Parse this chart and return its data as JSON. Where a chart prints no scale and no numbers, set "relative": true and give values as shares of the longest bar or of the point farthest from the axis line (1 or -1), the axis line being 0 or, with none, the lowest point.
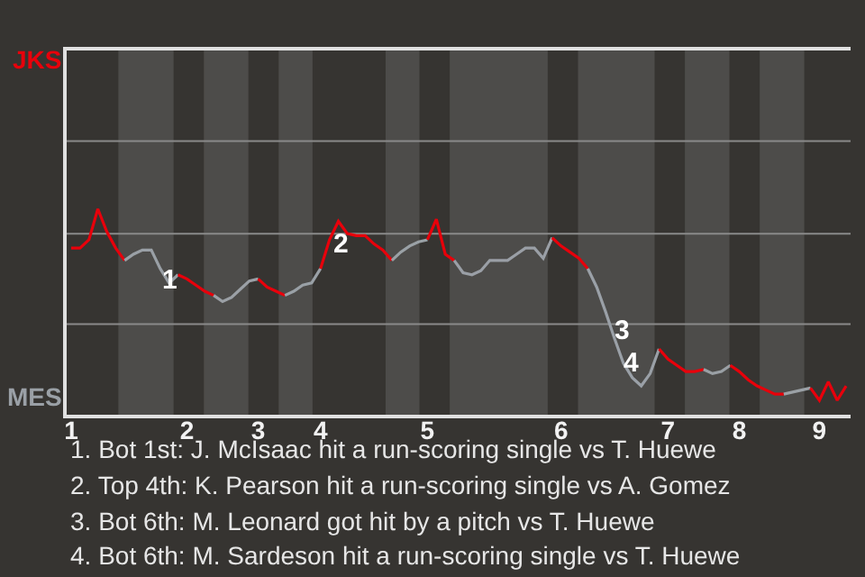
{
  "chart_data": {
    "type": "line",
    "relative": true,
    "categories": [
      "1",
      null,
      null,
      null,
      null,
      null,
      null,
      null,
      null,
      null,
      null,
      null,
      null,
      "2",
      null,
      null,
      null,
      null,
      null,
      null,
      null,
      "3",
      null,
      null,
      null,
      null,
      null,
      null,
      "4",
      null,
      null,
      null,
      null,
      null,
      null,
      null,
      null,
      null,
      null,
      null,
      "5",
      null,
      null,
      null,
      null,
      null,
      null,
      null,
      null,
      null,
      null,
      null,
      null,
      null,
      null,
      "6",
      null,
      null,
      null,
      null,
      null,
      null,
      null,
      null,
      null,
      null,
      null,
      "7",
      null,
      null,
      null,
      null,
      null,
      null,
      null,
      "8",
      null,
      null,
      null,
      null,
      null,
      null,
      null,
      null,
      "9",
      null,
      null,
      null
    ],
    "ref_lines": [
      {
        "axis": "y",
        "value": 0.44,
        "color": "#8a8a8a"
      },
      {
        "axis": "y",
        "value": 0.88,
        "color": "#8a8a8a"
      },
      {
        "axis": "y",
        "value": 1.33,
        "color": "#8a8a8a"
      }
    ],
    "legend": false,
    "series": [
      {
        "color": "#e8000b",
        "values": [
          0.81,
          0.81,
          0.85,
          1,
          0.89,
          0.81,
          0.75,
          null,
          null,
          null,
          null,
          null,
          null,
          null,
          null,
          null,
          null,
          null,
          null,
          null,
          null,
          null,
          null,
          null,
          null,
          null,
          null,
          null,
          null,
          null,
          null,
          null,
          null,
          null,
          null,
          null,
          null,
          null,
          null,
          null,
          null,
          null,
          null,
          null,
          null,
          null,
          null,
          null,
          null,
          null,
          null,
          null,
          null,
          null,
          null,
          null,
          null,
          null,
          null,
          null,
          null,
          null,
          null,
          null,
          null,
          null,
          null,
          null,
          null,
          null,
          null,
          null,
          null,
          null,
          null,
          null,
          null,
          null,
          null,
          null,
          null,
          null,
          null,
          null,
          null,
          null,
          null,
          null
        ]
      },
      {
        "color": "#9aa0a6",
        "values": [
          null,
          null,
          null,
          null,
          null,
          null,
          0.75,
          0.78,
          0.8,
          0.8,
          0.71,
          0.64,
          0.68,
          null,
          null,
          null,
          null,
          null,
          null,
          null,
          null,
          null,
          null,
          null,
          null,
          null,
          null,
          null,
          null,
          null,
          null,
          null,
          null,
          null,
          null,
          null,
          null,
          null,
          null,
          null,
          null,
          null,
          null,
          null,
          null,
          null,
          null,
          null,
          null,
          null,
          null,
          null,
          null,
          null,
          null,
          null,
          null,
          null,
          null,
          null,
          null,
          null,
          null,
          null,
          null,
          null,
          null,
          null,
          null,
          null,
          null,
          null,
          null,
          null,
          null,
          null,
          null,
          null,
          null,
          null,
          null,
          null,
          null,
          null,
          null,
          null,
          null,
          null
        ]
      },
      {
        "color": "#e7000b",
        "values": [
          null,
          null,
          null,
          null,
          null,
          null,
          null,
          null,
          null,
          null,
          null,
          null,
          0.68,
          0.66,
          0.63,
          0.6,
          0.58,
          null,
          null,
          null,
          null,
          null,
          null,
          null,
          null,
          null,
          null,
          null,
          null,
          null,
          null,
          null,
          null,
          null,
          null,
          null,
          null,
          null,
          null,
          null,
          null,
          null,
          null,
          null,
          null,
          null,
          null,
          null,
          null,
          null,
          null,
          null,
          null,
          null,
          null,
          null,
          null,
          null,
          null,
          null,
          null,
          null,
          null,
          null,
          null,
          null,
          null,
          null,
          null,
          null,
          null,
          null,
          null,
          null,
          null,
          null,
          null,
          null,
          null,
          null,
          null,
          null,
          null,
          null,
          null,
          null,
          null,
          null
        ]
      },
      {
        "color": "#9ba0a6",
        "values": [
          null,
          null,
          null,
          null,
          null,
          null,
          null,
          null,
          null,
          null,
          null,
          null,
          null,
          null,
          null,
          null,
          0.58,
          0.55,
          0.57,
          0.61,
          0.65,
          0.66,
          null,
          null,
          null,
          null,
          null,
          null,
          null,
          null,
          null,
          null,
          null,
          null,
          null,
          null,
          null,
          null,
          null,
          null,
          null,
          null,
          null,
          null,
          null,
          null,
          null,
          null,
          null,
          null,
          null,
          null,
          null,
          null,
          null,
          null,
          null,
          null,
          null,
          null,
          null,
          null,
          null,
          null,
          null,
          null,
          null,
          null,
          null,
          null,
          null,
          null,
          null,
          null,
          null,
          null,
          null,
          null,
          null,
          null,
          null,
          null,
          null,
          null,
          null,
          null,
          null,
          null
        ]
      },
      {
        "color": "#e9000b",
        "values": [
          null,
          null,
          null,
          null,
          null,
          null,
          null,
          null,
          null,
          null,
          null,
          null,
          null,
          null,
          null,
          null,
          null,
          null,
          null,
          null,
          null,
          0.66,
          0.62,
          0.6,
          0.58,
          null,
          null,
          null,
          null,
          null,
          null,
          null,
          null,
          null,
          null,
          null,
          null,
          null,
          null,
          null,
          null,
          null,
          null,
          null,
          null,
          null,
          null,
          null,
          null,
          null,
          null,
          null,
          null,
          null,
          null,
          null,
          null,
          null,
          null,
          null,
          null,
          null,
          null,
          null,
          null,
          null,
          null,
          null,
          null,
          null,
          null,
          null,
          null,
          null,
          null,
          null,
          null,
          null,
          null,
          null,
          null,
          null,
          null,
          null,
          null,
          null,
          null,
          null
        ]
      },
      {
        "color": "#99a0a6",
        "values": [
          null,
          null,
          null,
          null,
          null,
          null,
          null,
          null,
          null,
          null,
          null,
          null,
          null,
          null,
          null,
          null,
          null,
          null,
          null,
          null,
          null,
          null,
          null,
          null,
          0.58,
          0.6,
          0.63,
          0.64,
          0.71,
          null,
          null,
          null,
          null,
          null,
          null,
          null,
          null,
          null,
          null,
          null,
          null,
          null,
          null,
          null,
          null,
          null,
          null,
          null,
          null,
          null,
          null,
          null,
          null,
          null,
          null,
          null,
          null,
          null,
          null,
          null,
          null,
          null,
          null,
          null,
          null,
          null,
          null,
          null,
          null,
          null,
          null,
          null,
          null,
          null,
          null,
          null,
          null,
          null,
          null,
          null,
          null,
          null,
          null,
          null,
          null,
          null,
          null,
          null
        ]
      },
      {
        "color": "#e8010b",
        "values": [
          null,
          null,
          null,
          null,
          null,
          null,
          null,
          null,
          null,
          null,
          null,
          null,
          null,
          null,
          null,
          null,
          null,
          null,
          null,
          null,
          null,
          null,
          null,
          null,
          null,
          null,
          null,
          null,
          0.71,
          0.85,
          0.94,
          0.88,
          0.87,
          0.87,
          0.83,
          0.8,
          0.75,
          null,
          null,
          null,
          null,
          null,
          null,
          null,
          null,
          null,
          null,
          null,
          null,
          null,
          null,
          null,
          null,
          null,
          null,
          null,
          null,
          null,
          null,
          null,
          null,
          null,
          null,
          null,
          null,
          null,
          null,
          null,
          null,
          null,
          null,
          null,
          null,
          null,
          null,
          null,
          null,
          null,
          null,
          null,
          null,
          null,
          null,
          null,
          null,
          null,
          null,
          null
        ]
      },
      {
        "color": "#9aa1a6",
        "values": [
          null,
          null,
          null,
          null,
          null,
          null,
          null,
          null,
          null,
          null,
          null,
          null,
          null,
          null,
          null,
          null,
          null,
          null,
          null,
          null,
          null,
          null,
          null,
          null,
          null,
          null,
          null,
          null,
          null,
          null,
          null,
          null,
          null,
          null,
          null,
          null,
          0.75,
          0.79,
          0.82,
          0.84,
          0.85,
          null,
          null,
          null,
          null,
          null,
          null,
          null,
          null,
          null,
          null,
          null,
          null,
          null,
          null,
          null,
          null,
          null,
          null,
          null,
          null,
          null,
          null,
          null,
          null,
          null,
          null,
          null,
          null,
          null,
          null,
          null,
          null,
          null,
          null,
          null,
          null,
          null,
          null,
          null,
          null,
          null,
          null,
          null,
          null,
          null,
          null,
          null
        ]
      },
      {
        "color": "#e8000a",
        "values": [
          null,
          null,
          null,
          null,
          null,
          null,
          null,
          null,
          null,
          null,
          null,
          null,
          null,
          null,
          null,
          null,
          null,
          null,
          null,
          null,
          null,
          null,
          null,
          null,
          null,
          null,
          null,
          null,
          null,
          null,
          null,
          null,
          null,
          null,
          null,
          null,
          null,
          null,
          null,
          null,
          0.85,
          0.95,
          0.78,
          0.75,
          null,
          null,
          null,
          null,
          null,
          null,
          null,
          null,
          null,
          null,
          null,
          null,
          null,
          null,
          null,
          null,
          null,
          null,
          null,
          null,
          null,
          null,
          null,
          null,
          null,
          null,
          null,
          null,
          null,
          null,
          null,
          null,
          null,
          null,
          null,
          null,
          null,
          null,
          null,
          null,
          null,
          null,
          null,
          null
        ]
      },
      {
        "color": "#9a9fa6",
        "values": [
          null,
          null,
          null,
          null,
          null,
          null,
          null,
          null,
          null,
          null,
          null,
          null,
          null,
          null,
          null,
          null,
          null,
          null,
          null,
          null,
          null,
          null,
          null,
          null,
          null,
          null,
          null,
          null,
          null,
          null,
          null,
          null,
          null,
          null,
          null,
          null,
          null,
          null,
          null,
          null,
          null,
          null,
          null,
          0.75,
          0.69,
          0.68,
          0.7,
          0.75,
          0.75,
          0.75,
          0.78,
          0.81,
          0.81,
          0.76,
          0.86,
          null,
          null,
          null,
          null,
          null,
          null,
          null,
          null,
          null,
          null,
          null,
          null,
          null,
          null,
          null,
          null,
          null,
          null,
          null,
          null,
          null,
          null,
          null,
          null,
          null,
          null,
          null,
          null,
          null,
          null,
          null,
          null,
          null
        ]
      },
      {
        "color": "#e7010b",
        "values": [
          null,
          null,
          null,
          null,
          null,
          null,
          null,
          null,
          null,
          null,
          null,
          null,
          null,
          null,
          null,
          null,
          null,
          null,
          null,
          null,
          null,
          null,
          null,
          null,
          null,
          null,
          null,
          null,
          null,
          null,
          null,
          null,
          null,
          null,
          null,
          null,
          null,
          null,
          null,
          null,
          null,
          null,
          null,
          null,
          null,
          null,
          null,
          null,
          null,
          null,
          null,
          null,
          null,
          null,
          0.86,
          0.82,
          0.79,
          0.76,
          0.71,
          null,
          null,
          null,
          null,
          null,
          null,
          null,
          null,
          null,
          null,
          null,
          null,
          null,
          null,
          null,
          null,
          null,
          null,
          null,
          null,
          null,
          null,
          null,
          null,
          null,
          null,
          null,
          null,
          null
        ]
      },
      {
        "color": "#9aa0a7",
        "values": [
          null,
          null,
          null,
          null,
          null,
          null,
          null,
          null,
          null,
          null,
          null,
          null,
          null,
          null,
          null,
          null,
          null,
          null,
          null,
          null,
          null,
          null,
          null,
          null,
          null,
          null,
          null,
          null,
          null,
          null,
          null,
          null,
          null,
          null,
          null,
          null,
          null,
          null,
          null,
          null,
          null,
          null,
          null,
          null,
          null,
          null,
          null,
          null,
          null,
          null,
          null,
          null,
          null,
          null,
          null,
          null,
          null,
          null,
          0.71,
          0.62,
          0.5,
          0.37,
          0.25,
          0.18,
          0.14,
          0.2,
          0.32,
          null,
          null,
          null,
          null,
          null,
          null,
          null,
          null,
          null,
          null,
          null,
          null,
          null,
          null,
          null,
          null,
          null,
          null,
          null,
          null,
          null
        ]
      },
      {
        "color": "#e9010b",
        "values": [
          null,
          null,
          null,
          null,
          null,
          null,
          null,
          null,
          null,
          null,
          null,
          null,
          null,
          null,
          null,
          null,
          null,
          null,
          null,
          null,
          null,
          null,
          null,
          null,
          null,
          null,
          null,
          null,
          null,
          null,
          null,
          null,
          null,
          null,
          null,
          null,
          null,
          null,
          null,
          null,
          null,
          null,
          null,
          null,
          null,
          null,
          null,
          null,
          null,
          null,
          null,
          null,
          null,
          null,
          null,
          null,
          null,
          null,
          null,
          null,
          null,
          null,
          null,
          null,
          null,
          null,
          0.32,
          0.27,
          0.24,
          0.21,
          0.21,
          0.22,
          null,
          null,
          null,
          null,
          null,
          null,
          null,
          null,
          null,
          null,
          null,
          null,
          null,
          null,
          null,
          null
        ]
      },
      {
        "color": "#9aa0a5",
        "values": [
          null,
          null,
          null,
          null,
          null,
          null,
          null,
          null,
          null,
          null,
          null,
          null,
          null,
          null,
          null,
          null,
          null,
          null,
          null,
          null,
          null,
          null,
          null,
          null,
          null,
          null,
          null,
          null,
          null,
          null,
          null,
          null,
          null,
          null,
          null,
          null,
          null,
          null,
          null,
          null,
          null,
          null,
          null,
          null,
          null,
          null,
          null,
          null,
          null,
          null,
          null,
          null,
          null,
          null,
          null,
          null,
          null,
          null,
          null,
          null,
          null,
          null,
          null,
          null,
          null,
          null,
          null,
          null,
          null,
          null,
          null,
          0.22,
          0.2,
          0.21,
          0.24,
          null,
          null,
          null,
          null,
          null,
          null,
          null,
          null,
          null,
          null,
          null,
          null,
          null
        ]
      },
      {
        "color": "#e8010a",
        "values": [
          null,
          null,
          null,
          null,
          null,
          null,
          null,
          null,
          null,
          null,
          null,
          null,
          null,
          null,
          null,
          null,
          null,
          null,
          null,
          null,
          null,
          null,
          null,
          null,
          null,
          null,
          null,
          null,
          null,
          null,
          null,
          null,
          null,
          null,
          null,
          null,
          null,
          null,
          null,
          null,
          null,
          null,
          null,
          null,
          null,
          null,
          null,
          null,
          null,
          null,
          null,
          null,
          null,
          null,
          null,
          null,
          null,
          null,
          null,
          null,
          null,
          null,
          null,
          null,
          null,
          null,
          null,
          null,
          null,
          null,
          null,
          null,
          null,
          null,
          0.24,
          0.21,
          0.17,
          0.14,
          0.12,
          0.1,
          0.1,
          null,
          null,
          null,
          null,
          null,
          null,
          null
        ]
      },
      {
        "color": "#9ba1a6",
        "values": [
          null,
          null,
          null,
          null,
          null,
          null,
          null,
          null,
          null,
          null,
          null,
          null,
          null,
          null,
          null,
          null,
          null,
          null,
          null,
          null,
          null,
          null,
          null,
          null,
          null,
          null,
          null,
          null,
          null,
          null,
          null,
          null,
          null,
          null,
          null,
          null,
          null,
          null,
          null,
          null,
          null,
          null,
          null,
          null,
          null,
          null,
          null,
          null,
          null,
          null,
          null,
          null,
          null,
          null,
          null,
          null,
          null,
          null,
          null,
          null,
          null,
          null,
          null,
          null,
          null,
          null,
          null,
          null,
          null,
          null,
          null,
          null,
          null,
          null,
          null,
          null,
          null,
          null,
          null,
          null,
          0.1,
          0.11,
          0.12,
          0.13,
          null,
          null,
          null,
          null
        ]
      },
      {
        "color": "#e8000c",
        "values": [
          null,
          null,
          null,
          null,
          null,
          null,
          null,
          null,
          null,
          null,
          null,
          null,
          null,
          null,
          null,
          null,
          null,
          null,
          null,
          null,
          null,
          null,
          null,
          null,
          null,
          null,
          null,
          null,
          null,
          null,
          null,
          null,
          null,
          null,
          null,
          null,
          null,
          null,
          null,
          null,
          null,
          null,
          null,
          null,
          null,
          null,
          null,
          null,
          null,
          null,
          null,
          null,
          null,
          null,
          null,
          null,
          null,
          null,
          null,
          null,
          null,
          null,
          null,
          null,
          null,
          null,
          null,
          null,
          null,
          null,
          null,
          null,
          null,
          null,
          null,
          null,
          null,
          null,
          null,
          null,
          null,
          null,
          null,
          0.13,
          0.07,
          0.16,
          0.07,
          0.14
        ]
      }
    ],
    "annotations": [
      "JKS",
      "MES",
      "1",
      "2",
      "3",
      "4",
      "1. Bot 1st: J. McIsaac hit a run-scoring single vs T. Huewe",
      "2. Top 4th: K. Pearson hit a run-scoring single vs A. Gomez",
      "3. Bot 6th: M. Leonard got hit by a pitch vs T. Huewe",
      "4. Bot 6th: M. Sardeson hit a run-scoring single vs T. Huewe"
    ]
  }
}
